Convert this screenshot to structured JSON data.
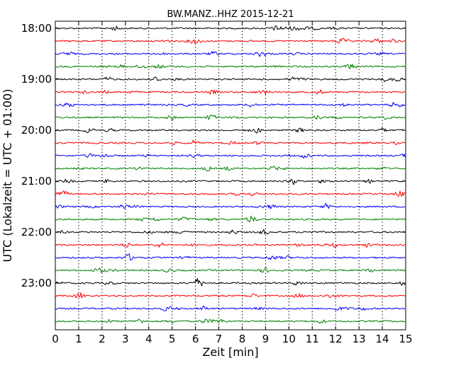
{
  "chart_data": {
    "type": "line",
    "title": "BW.MANZ..HHZ 2015-12-21",
    "xlabel": "Zeit  [min]",
    "ylabel": "UTC (Lokalzeit = UTC + 01:00)",
    "xlim": [
      0,
      15
    ],
    "x_ticks": [
      "0",
      "1",
      "2",
      "3",
      "4",
      "5",
      "6",
      "7",
      "8",
      "9",
      "10",
      "11",
      "12",
      "13",
      "14",
      "15"
    ],
    "y_tick_labels": [
      "18:00",
      "19:00",
      "20:00",
      "21:00",
      "22:00",
      "23:00"
    ],
    "grid": "vertical dotted at each minute",
    "trace_interval_minutes": 15,
    "start": "18:00",
    "trace_count": 24,
    "trace_colors": [
      "#000000",
      "#ff0000",
      "#0000ff",
      "#008000"
    ]
  }
}
